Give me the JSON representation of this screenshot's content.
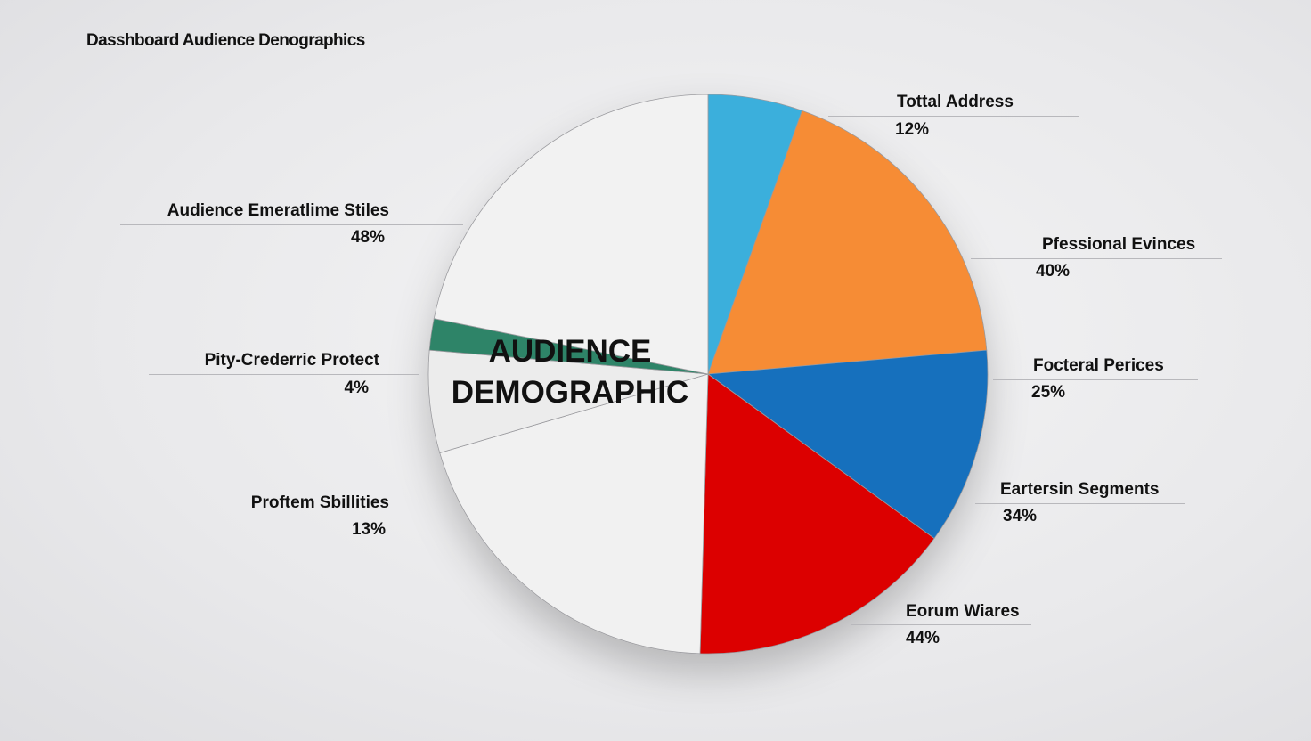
{
  "chart_data": {
    "type": "pie",
    "title": "Dasshboard Audience Denographics",
    "center_label": "AUDIENCE DEMOGRAPHIC",
    "categories": [
      "Tottal Address",
      "Pfessional Evinces",
      "Focteral Perices",
      "Eartersin Segments",
      "Eorum Wiares",
      "Proftem Sbillities",
      "Pity-Crederric Protect",
      "Audience Emeratlime Stiles"
    ],
    "values": [
      12,
      40,
      25,
      34,
      44,
      13,
      4,
      48
    ],
    "value_labels": [
      "12%",
      "40%",
      "25%",
      "34%",
      "44%",
      "13%",
      "4%",
      "48%"
    ],
    "colors": [
      "#3aafdc",
      "#f68c35",
      "#1670bd",
      "#dc0404",
      "#f1f1f1",
      "#ececec",
      "#2f8467",
      "#f2f2f2"
    ]
  }
}
